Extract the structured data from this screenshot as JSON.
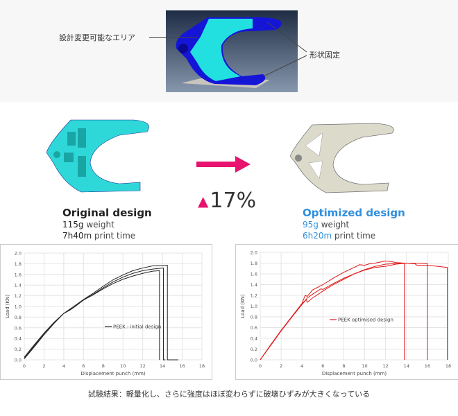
{
  "top": {
    "callout_left": "設計変更可能なエリア",
    "callout_right": "形状固定",
    "colors": {
      "design_area": "#22e0e0",
      "fixed_area": "#1010d0",
      "background": "#2a3a55"
    }
  },
  "comparison": {
    "original": {
      "title": "Original design",
      "weight_value": "115g",
      "weight_label": " weight",
      "time_value": "7h40m",
      "time_label": " print time",
      "color": "#2fd8d8"
    },
    "optimized": {
      "title": "Optimized design",
      "weight_value": "95g",
      "weight_label": " weight",
      "time_value": "6h20m",
      "time_label": " print time",
      "color": "#2f8fde"
    },
    "arrow_icon": "right-arrow-icon",
    "change_icon": "triangle-up-icon",
    "change_value": "17%",
    "accent": "#e8136f"
  },
  "chart_data": [
    {
      "type": "line",
      "xlabel": "Displacement punch (mm)",
      "ylabel": "Load (KN)",
      "xlim": [
        0,
        18
      ],
      "ylim": [
        0,
        2.0
      ],
      "xticks": [
        "0",
        "2",
        "4",
        "6",
        "8",
        "10",
        "12",
        "14",
        "16",
        "18"
      ],
      "yticks": [
        "0.0",
        "0.2",
        "0.4",
        "0.6",
        "0.8",
        "1.0",
        "1.2",
        "1.4",
        "1.6",
        "1.8",
        "2.0"
      ],
      "grid": true,
      "legend": "PEEK : initial design",
      "legend_position": "center",
      "color": "#222222",
      "series": [
        {
          "x": [
            0,
            1,
            2,
            3,
            4,
            5,
            6,
            7,
            8,
            9,
            10,
            11,
            12,
            13,
            14.5,
            14.5,
            15.6
          ],
          "y": [
            0.05,
            0.28,
            0.5,
            0.7,
            0.87,
            1.0,
            1.13,
            1.25,
            1.38,
            1.5,
            1.59,
            1.67,
            1.72,
            1.76,
            1.77,
            0,
            0
          ]
        },
        {
          "x": [
            0,
            1,
            2,
            3,
            4,
            5,
            6,
            7,
            8,
            9,
            10,
            11,
            12,
            13,
            14.1,
            14.1,
            14.3
          ],
          "y": [
            0.03,
            0.26,
            0.48,
            0.69,
            0.87,
            0.98,
            1.12,
            1.23,
            1.35,
            1.46,
            1.55,
            1.62,
            1.67,
            1.7,
            1.72,
            0,
            0
          ]
        },
        {
          "x": [
            0,
            1,
            2,
            3,
            4,
            4.6,
            5,
            6,
            7,
            8,
            9,
            10,
            11,
            12,
            13,
            13.7,
            13.7
          ],
          "y": [
            0.02,
            0.24,
            0.47,
            0.68,
            0.87,
            0.93,
            0.98,
            1.12,
            1.22,
            1.33,
            1.43,
            1.51,
            1.57,
            1.62,
            1.66,
            1.67,
            0
          ]
        }
      ]
    },
    {
      "type": "line",
      "xlabel": "Displacement punch (mm)",
      "ylabel": "Load (KN)",
      "xlim": [
        0,
        18
      ],
      "ylim": [
        0,
        2.0
      ],
      "xticks": [
        "0",
        "2",
        "4",
        "6",
        "8",
        "10",
        "12",
        "14",
        "16",
        "18"
      ],
      "yticks": [
        "0.0",
        "0.2",
        "0.4",
        "0.6",
        "0.8",
        "1.0",
        "1.2",
        "1.4",
        "1.6",
        "1.8",
        "2.0"
      ],
      "grid": true,
      "legend": "PEEK optimised design",
      "legend_position": "center",
      "color": "#e01818",
      "series": [
        {
          "x": [
            0,
            1,
            2,
            3,
            4,
            4.3,
            4.5,
            5,
            6,
            7,
            8,
            9,
            9.5,
            10,
            10.5,
            11,
            12,
            12.5,
            13,
            13.8,
            13.8
          ],
          "y": [
            0,
            0.28,
            0.55,
            0.8,
            1.05,
            1.2,
            1.18,
            1.3,
            1.4,
            1.52,
            1.63,
            1.72,
            1.77,
            1.76,
            1.79,
            1.8,
            1.84,
            1.83,
            1.81,
            1.8,
            0
          ]
        },
        {
          "x": [
            0,
            1,
            2,
            3,
            4,
            4.4,
            4.5,
            5,
            6,
            7,
            8,
            9,
            10,
            11,
            12,
            13,
            14,
            15,
            16,
            16
          ],
          "y": [
            0,
            0.27,
            0.54,
            0.79,
            1.03,
            1.12,
            1.07,
            1.15,
            1.28,
            1.4,
            1.5,
            1.6,
            1.67,
            1.72,
            1.74,
            1.78,
            1.8,
            1.8,
            1.79,
            0
          ]
        },
        {
          "x": [
            0,
            1,
            2,
            3,
            4,
            4.5,
            5,
            5.8,
            6,
            7,
            8,
            9,
            10,
            11,
            12,
            13,
            14,
            14.8,
            15,
            16,
            17,
            17.9,
            17.9
          ],
          "y": [
            0,
            0.27,
            0.54,
            0.79,
            1.04,
            1.15,
            1.22,
            1.32,
            1.31,
            1.42,
            1.52,
            1.6,
            1.68,
            1.74,
            1.78,
            1.79,
            1.8,
            1.79,
            1.76,
            1.76,
            1.74,
            1.72,
            0
          ]
        }
      ]
    }
  ],
  "caption": "試験結果：軽量化し、さらに強度はほぼ変わらずに破壊ひずみが大きくなっている"
}
